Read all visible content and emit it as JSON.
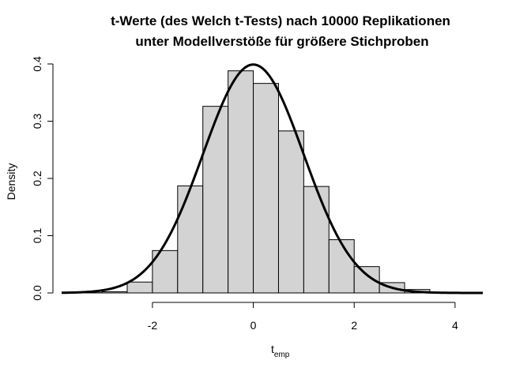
{
  "chart_data": {
    "type": "bar",
    "title": "t-Werte (des Welch t-Tests) nach 10000 Replikationen",
    "title_line2": "unter Modellverstöße für größere Stichproben",
    "xlabel_main": "t",
    "xlabel_sub": "emp",
    "ylabel": "Density",
    "xlim": [
      -3.8,
      4.55
    ],
    "ylim": [
      0,
      0.4
    ],
    "x_ticks": [
      -2,
      0,
      2,
      4
    ],
    "y_ticks": [
      0.0,
      0.1,
      0.2,
      0.3,
      0.4
    ],
    "bin_width": 0.5,
    "bins": [
      {
        "start": -3.5,
        "end": -3.0,
        "density": 0.0004
      },
      {
        "start": -3.0,
        "end": -2.5,
        "density": 0.002
      },
      {
        "start": -2.5,
        "end": -2.0,
        "density": 0.019
      },
      {
        "start": -2.0,
        "end": -1.5,
        "density": 0.074
      },
      {
        "start": -1.5,
        "end": -1.0,
        "density": 0.187
      },
      {
        "start": -1.0,
        "end": -0.5,
        "density": 0.326
      },
      {
        "start": -0.5,
        "end": 0.0,
        "density": 0.388
      },
      {
        "start": 0.0,
        "end": 0.5,
        "density": 0.366
      },
      {
        "start": 0.5,
        "end": 1.0,
        "density": 0.283
      },
      {
        "start": 1.0,
        "end": 1.5,
        "density": 0.186
      },
      {
        "start": 1.5,
        "end": 2.0,
        "density": 0.093
      },
      {
        "start": 2.0,
        "end": 2.5,
        "density": 0.046
      },
      {
        "start": 2.5,
        "end": 3.0,
        "density": 0.018
      },
      {
        "start": 3.0,
        "end": 3.5,
        "density": 0.006
      },
      {
        "start": 3.5,
        "end": 4.0,
        "density": 0.001
      }
    ],
    "overlay_curve": {
      "type": "normal-density",
      "mean": 0,
      "sd": 1,
      "x_range": [
        -3.8,
        4.55
      ]
    },
    "bar_fill": "#d3d3d3",
    "bar_stroke": "#000000",
    "curve_color": "#000000",
    "grid": false
  }
}
